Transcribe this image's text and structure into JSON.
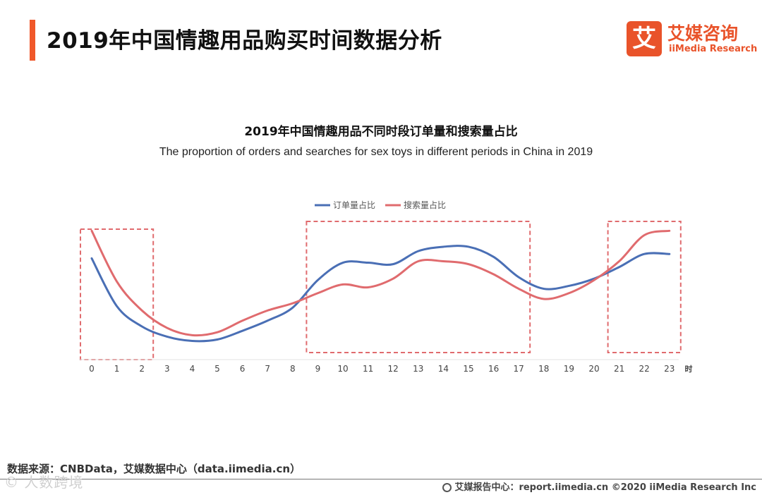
{
  "page": {
    "title": "2019年中国情趣用品购买时间数据分析"
  },
  "logo": {
    "mark": "艾",
    "name_cn": "艾媒咨询",
    "name_en": "iiMedia Research"
  },
  "footer": {
    "source": "数据来源：CNBData，艾媒数据中心（data.iimedia.cn）",
    "copyright": "艾媒报告中心：report.iimedia.cn   ©2020  iiMedia Research  Inc",
    "watermark": "© 人数跨境"
  },
  "colors": {
    "accent": "#f0582a",
    "orders": "#4a6fb5",
    "searches": "#e06b6e",
    "highlight_box": "#e06b6e"
  },
  "chart_data": {
    "type": "line",
    "title": "2019年中国情趣用品不同时段订单量和搜索量占比",
    "subtitle": "The proportion of orders and searches for sex toys in different periods in China in 2019",
    "x_unit": "时",
    "x": [
      0,
      1,
      2,
      3,
      4,
      5,
      6,
      7,
      8,
      9,
      10,
      11,
      12,
      13,
      14,
      15,
      16,
      17,
      18,
      19,
      20,
      21,
      22,
      23
    ],
    "series": [
      {
        "name": "订单量占比",
        "color": "#4a6fb5",
        "values": [
          6.5,
          3.2,
          1.8,
          1.1,
          0.8,
          0.9,
          1.5,
          2.2,
          3.1,
          5.0,
          6.2,
          6.2,
          6.1,
          7.0,
          7.3,
          7.3,
          6.6,
          5.2,
          4.4,
          4.6,
          5.1,
          5.9,
          6.8,
          6.8
        ]
      },
      {
        "name": "搜索量占比",
        "color": "#e06b6e",
        "values": [
          8.4,
          4.9,
          2.9,
          1.7,
          1.2,
          1.4,
          2.2,
          2.9,
          3.4,
          4.1,
          4.7,
          4.5,
          5.1,
          6.3,
          6.3,
          6.1,
          5.4,
          4.4,
          3.7,
          4.1,
          5.0,
          6.3,
          8.1,
          8.4
        ]
      }
    ],
    "ylim": [
      0,
      9
    ],
    "highlights": [
      [
        0,
        2
      ],
      [
        9,
        17
      ],
      [
        21,
        23
      ]
    ],
    "legend": "top-center",
    "grid": false
  }
}
